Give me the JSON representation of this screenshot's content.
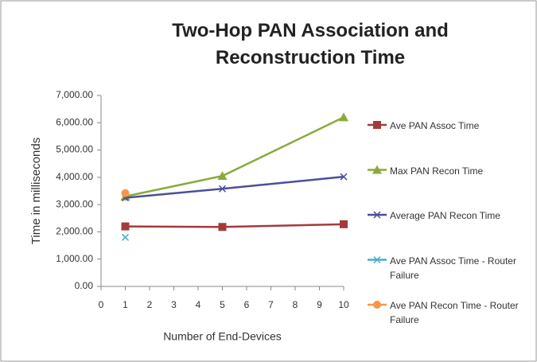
{
  "chart_data": {
    "type": "line",
    "title": "Two-Hop PAN Association and Reconstruction Time",
    "x_label": "Number of End-Devices",
    "y_label": "Time in milliseconds",
    "x": [
      1,
      5,
      10
    ],
    "xlim": [
      0,
      10
    ],
    "xticks": [
      0,
      1,
      2,
      3,
      4,
      5,
      6,
      7,
      8,
      9,
      10
    ],
    "ylim": [
      0,
      7000
    ],
    "yticks": [
      {
        "value": 0,
        "label": "0.00"
      },
      {
        "value": 1000,
        "label": "1,000.00"
      },
      {
        "value": 2000,
        "label": "2,000.00"
      },
      {
        "value": 3000,
        "label": "3,000.00"
      },
      {
        "value": 4000,
        "label": "4,000.00"
      },
      {
        "value": 5000,
        "label": "5,000.00"
      },
      {
        "value": 6000,
        "label": "6,000.00"
      },
      {
        "value": 7000,
        "label": "7,000.00"
      }
    ],
    "grid": false,
    "legend": "right",
    "series": [
      {
        "name": "Ave PAN Assoc Time",
        "color": "#a33b3b",
        "marker": "square",
        "values": [
          2200,
          2180,
          2280
        ]
      },
      {
        "name": "Max PAN Recon Time",
        "color": "#8aaa3c",
        "marker": "triangle",
        "values": [
          3300,
          4050,
          6200
        ]
      },
      {
        "name": "Average PAN Recon Time",
        "color": "#4b4f9a",
        "marker": "x",
        "values": [
          3250,
          3580,
          4020
        ]
      },
      {
        "name": "Ave PAN Assoc Time - Router Failure",
        "color": "#4bacc6",
        "marker": "x",
        "values": [
          1800,
          null,
          null
        ]
      },
      {
        "name": "Ave PAN Recon Time - Router Failure",
        "color": "#f79646",
        "marker": "circle",
        "values": [
          3420,
          null,
          null
        ]
      }
    ]
  }
}
